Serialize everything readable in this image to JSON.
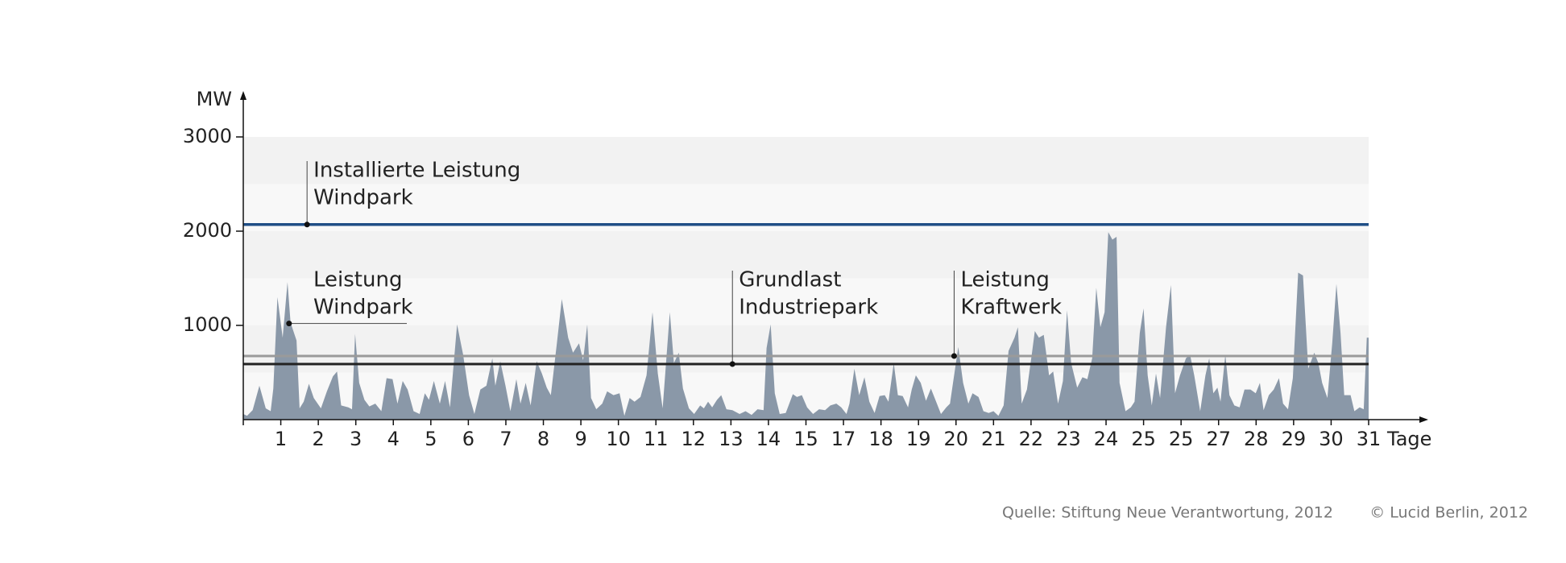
{
  "chart_data": {
    "type": "area",
    "y_label": "MW",
    "x_label": "Tage",
    "color": "#8a98a8",
    "xlim": [
      0,
      30
    ],
    "xticks": [
      1,
      2,
      3,
      4,
      5,
      6,
      7,
      8,
      9,
      10,
      11,
      12,
      13,
      14,
      15,
      {
        "value": 16,
        "label": "17"
      },
      {
        "value": 17,
        "label": "18"
      },
      {
        "value": 18,
        "label": "19"
      },
      {
        "value": 19,
        "label": "20"
      },
      {
        "value": 20,
        "label": "21"
      },
      {
        "value": 21,
        "label": "22"
      },
      {
        "value": 22,
        "label": "23"
      },
      {
        "value": 23,
        "label": "24"
      },
      {
        "value": 24,
        "label": "25"
      },
      {
        "value": 25,
        "label": "25"
      },
      {
        "value": 26,
        "label": "27"
      },
      {
        "value": 27,
        "label": "28"
      },
      {
        "value": 28,
        "label": "29"
      },
      {
        "value": 29,
        "label": "30"
      },
      {
        "value": 30,
        "label": "31"
      }
    ],
    "ylim": [
      0,
      3000
    ],
    "yticks": [
      1000,
      2000,
      3000
    ],
    "x": [
      0,
      0.1,
      0.25,
      0.43,
      0.6,
      0.73,
      0.8,
      0.91,
      1.05,
      1.18,
      1.26,
      1.42,
      1.5,
      1.61,
      1.75,
      1.88,
      2.07,
      2.23,
      2.39,
      2.5,
      2.61,
      2.8,
      2.9,
      2.98,
      3.09,
      3.23,
      3.36,
      3.52,
      3.68,
      3.82,
      3.98,
      4.11,
      4.25,
      4.38,
      4.54,
      4.7,
      4.84,
      4.95,
      5.08,
      5.24,
      5.38,
      5.51,
      5.7,
      5.86,
      6.02,
      6.16,
      6.32,
      6.48,
      6.64,
      6.72,
      6.85,
      6.99,
      7.12,
      7.28,
      7.39,
      7.53,
      7.66,
      7.82,
      7.96,
      8.09,
      8.2,
      8.36,
      8.49,
      8.66,
      8.79,
      8.95,
      9.06,
      9.17,
      9.27,
      9.41,
      9.57,
      9.7,
      9.87,
      10.03,
      10.16,
      10.3,
      10.43,
      10.59,
      10.75,
      10.91,
      11.05,
      11.18,
      11.37,
      11.48,
      11.61,
      11.72,
      11.88,
      12.02,
      12.18,
      12.28,
      12.39,
      12.5,
      12.63,
      12.74,
      12.88,
      13.04,
      13.23,
      13.39,
      13.55,
      13.71,
      13.87,
      13.95,
      14.06,
      14.17,
      14.3,
      14.46,
      14.65,
      14.76,
      14.89,
      15.03,
      15.19,
      15.35,
      15.51,
      15.65,
      15.81,
      15.94,
      16.08,
      16.16,
      16.29,
      16.42,
      16.56,
      16.69,
      16.83,
      16.96,
      17.1,
      17.2,
      17.34,
      17.45,
      17.58,
      17.72,
      17.82,
      17.93,
      18.06,
      18.2,
      18.33,
      18.47,
      18.6,
      18.74,
      18.84,
      18.95,
      19.06,
      19.19,
      19.33,
      19.44,
      19.6,
      19.73,
      19.87,
      20.0,
      20.13,
      20.27,
      20.4,
      20.56,
      20.65,
      20.75,
      20.89,
      21.02,
      21.1,
      21.21,
      21.34,
      21.48,
      21.59,
      21.72,
      21.85,
      21.96,
      22.07,
      22.23,
      22.37,
      22.5,
      22.63,
      22.74,
      22.85,
      22.96,
      23.06,
      23.17,
      23.28,
      23.36,
      23.52,
      23.66,
      23.76,
      23.9,
      24.0,
      24.11,
      24.22,
      24.33,
      24.44,
      24.6,
      24.73,
      24.84,
      24.97,
      25.13,
      25.24,
      25.35,
      25.51,
      25.65,
      25.75,
      25.86,
      25.97,
      26.05,
      26.18,
      26.29,
      26.42,
      26.56,
      26.69,
      26.85,
      26.99,
      27.1,
      27.2,
      27.34,
      27.47,
      27.61,
      27.72,
      27.85,
      27.98,
      28.12,
      28.25,
      28.39,
      28.55,
      28.66,
      28.76,
      28.9,
      29.03,
      29.14,
      29.25,
      29.35,
      29.52,
      29.62,
      29.76,
      29.87,
      29.95,
      30
    ],
    "values": [
      60,
      40,
      100,
      360,
      120,
      90,
      330,
      1300,
      870,
      1460,
      1030,
      840,
      120,
      190,
      380,
      230,
      120,
      300,
      460,
      510,
      150,
      130,
      110,
      910,
      390,
      210,
      140,
      170,
      90,
      440,
      430,
      170,
      410,
      320,
      90,
      60,
      280,
      210,
      410,
      170,
      410,
      130,
      1010,
      690,
      260,
      60,
      320,
      360,
      650,
      360,
      620,
      360,
      90,
      430,
      170,
      390,
      150,
      620,
      490,
      340,
      260,
      810,
      1280,
      870,
      710,
      810,
      630,
      1010,
      230,
      110,
      170,
      300,
      260,
      280,
      40,
      230,
      190,
      240,
      470,
      1140,
      490,
      120,
      1140,
      600,
      710,
      330,
      120,
      60,
      150,
      120,
      190,
      130,
      210,
      260,
      110,
      100,
      60,
      90,
      50,
      110,
      100,
      760,
      1010,
      280,
      60,
      70,
      270,
      240,
      260,
      130,
      60,
      110,
      100,
      150,
      170,
      130,
      60,
      170,
      540,
      260,
      450,
      190,
      70,
      250,
      260,
      190,
      600,
      260,
      250,
      130,
      320,
      470,
      390,
      200,
      330,
      190,
      60,
      130,
      170,
      470,
      770,
      390,
      170,
      280,
      240,
      90,
      70,
      90,
      40,
      150,
      730,
      870,
      980,
      170,
      320,
      690,
      940,
      870,
      900,
      470,
      510,
      170,
      410,
      1160,
      600,
      340,
      450,
      430,
      650,
      1400,
      980,
      1140,
      1990,
      1910,
      1940,
      390,
      90,
      130,
      190,
      920,
      1180,
      470,
      150,
      490,
      230,
      980,
      1430,
      280,
      470,
      650,
      690,
      470,
      90,
      470,
      650,
      280,
      340,
      190,
      690,
      260,
      150,
      130,
      320,
      320,
      280,
      390,
      100,
      260,
      320,
      440,
      170,
      110,
      440,
      1560,
      1530,
      540,
      710,
      600,
      390,
      230,
      810,
      1440,
      920,
      260,
      260,
      90,
      130,
      110,
      870,
      870
    ],
    "reference_lines": [
      {
        "label": [
          "Installierte Leistung",
          "Windpark"
        ],
        "value": 2070,
        "x": 1.7,
        "color": "#1f4e86"
      },
      {
        "label": [
          "Leistung",
          "Kraftwerk"
        ],
        "value": 675,
        "x": 18.95,
        "color": "#9a9a9a"
      },
      {
        "label": [
          "Grundlast",
          "Industriepark"
        ],
        "value": 590,
        "x": 13.04,
        "color": "#222222"
      }
    ],
    "annotations": [
      {
        "label": [
          "Leistung",
          "Windpark"
        ],
        "x": 1.22,
        "y": 1020
      }
    ],
    "source": "Quelle: Stiftung Neue Verantwortung, 2012",
    "credit": "© Lucid Berlin, 2012"
  }
}
